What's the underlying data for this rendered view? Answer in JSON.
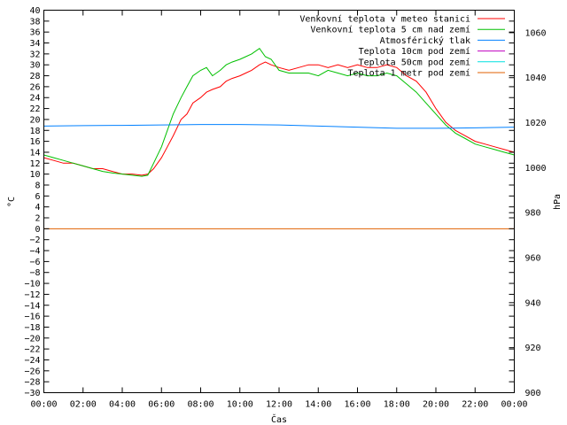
{
  "chart_data": {
    "type": "line",
    "title": "",
    "xlabel": "Čas",
    "ylabel": "°C",
    "y2label": "hPa",
    "ylim": [
      -30,
      40
    ],
    "y2lim": [
      900,
      1070
    ],
    "yticks": [
      -30,
      -28,
      -26,
      -24,
      -22,
      -20,
      -18,
      -16,
      -14,
      -12,
      -10,
      -8,
      -6,
      -4,
      -2,
      0,
      2,
      4,
      6,
      8,
      10,
      12,
      14,
      16,
      18,
      20,
      22,
      24,
      26,
      28,
      30,
      32,
      34,
      36,
      38,
      40
    ],
    "y2ticks": [
      900,
      920,
      940,
      960,
      980,
      1000,
      1020,
      1040,
      1060
    ],
    "xlim": [
      0,
      24
    ],
    "xticks": [
      0,
      2,
      4,
      6,
      8,
      10,
      12,
      14,
      16,
      18,
      20,
      22,
      24
    ],
    "xtick_labels": [
      "00:00",
      "02:00",
      "04:00",
      "06:00",
      "08:00",
      "10:00",
      "12:00",
      "14:00",
      "16:00",
      "18:00",
      "20:00",
      "22:00",
      "00:00"
    ],
    "legend_position": "top-right",
    "grid": false,
    "series": [
      {
        "name": "Venkovní teplota v meteo stanici",
        "color": "#ff0000",
        "axis": "left",
        "x": [
          0,
          0.5,
          1,
          1.5,
          2,
          2.5,
          3,
          3.5,
          4,
          4.5,
          5,
          5.3,
          5.6,
          6,
          6.3,
          6.6,
          7,
          7.3,
          7.6,
          8,
          8.3,
          8.6,
          9,
          9.3,
          9.6,
          10,
          10.3,
          10.6,
          11,
          11.3,
          11.6,
          12,
          12.5,
          13,
          13.5,
          14,
          14.5,
          15,
          15.5,
          16,
          16.5,
          17,
          17.5,
          18,
          18.5,
          19,
          19.5,
          20,
          20.5,
          21,
          21.5,
          22,
          22.5,
          23,
          23.5,
          24
        ],
        "y": [
          13,
          12.5,
          12,
          12,
          11.5,
          11,
          11,
          10.5,
          10,
          10,
          9.8,
          10,
          11,
          13,
          15,
          17,
          20,
          21,
          23,
          24,
          25,
          25.5,
          26,
          27,
          27.5,
          28,
          28.5,
          29,
          30,
          30.5,
          30,
          29.5,
          29,
          29.5,
          30,
          30,
          29.5,
          30,
          29.5,
          30,
          29.5,
          29.5,
          30,
          29.5,
          28,
          27,
          25,
          22,
          19.5,
          18,
          17,
          16,
          15.5,
          15,
          14.5,
          14
        ]
      },
      {
        "name": "Venkovní teplota 5 cm nad zemí",
        "color": "#00c000",
        "axis": "left",
        "x": [
          0,
          0.5,
          1,
          1.5,
          2,
          2.5,
          3,
          3.5,
          4,
          4.5,
          5,
          5.3,
          5.6,
          6,
          6.3,
          6.6,
          7,
          7.3,
          7.6,
          8,
          8.3,
          8.6,
          9,
          9.3,
          9.6,
          10,
          10.3,
          10.6,
          11,
          11.3,
          11.6,
          12,
          12.5,
          13,
          13.5,
          14,
          14.5,
          15,
          15.5,
          16,
          16.5,
          17,
          17.5,
          18,
          18.5,
          19,
          19.5,
          20,
          20.5,
          21,
          21.5,
          22,
          22.5,
          23,
          23.5,
          24
        ],
        "y": [
          13.5,
          13,
          12.5,
          12,
          11.5,
          11,
          10.5,
          10.2,
          10,
          9.8,
          9.6,
          9.8,
          12,
          15,
          18,
          21,
          24,
          26,
          28,
          29,
          29.5,
          28,
          29,
          30,
          30.5,
          31,
          31.5,
          32,
          33,
          31.5,
          31,
          29,
          28.5,
          28.5,
          28.5,
          28,
          29,
          28.5,
          28,
          28.5,
          28,
          28,
          28.5,
          28,
          26.5,
          25,
          23,
          21,
          19,
          17.5,
          16.5,
          15.5,
          15,
          14.5,
          14,
          13.5
        ]
      },
      {
        "name": "Atmosférický tlak",
        "color": "#0080ff",
        "axis": "right",
        "x": [
          0,
          2,
          4,
          6,
          8,
          10,
          12,
          14,
          16,
          18,
          20,
          22,
          24
        ],
        "y": [
          1018.5,
          1018.7,
          1018.8,
          1019,
          1019.2,
          1019.2,
          1019,
          1018.5,
          1018,
          1017.5,
          1017.5,
          1017.7,
          1018
        ]
      },
      {
        "name": "Teplota 10cm pod zemí",
        "color": "#c000c0",
        "axis": "left",
        "x": [],
        "y": []
      },
      {
        "name": "Teplota 50cm pod zemí",
        "color": "#00e0e0",
        "axis": "left",
        "x": [],
        "y": []
      },
      {
        "name": "Teplota 1 metr pod zemí",
        "color": "#e06000",
        "axis": "left",
        "x": [
          0,
          24
        ],
        "y": [
          0,
          0
        ]
      }
    ]
  }
}
